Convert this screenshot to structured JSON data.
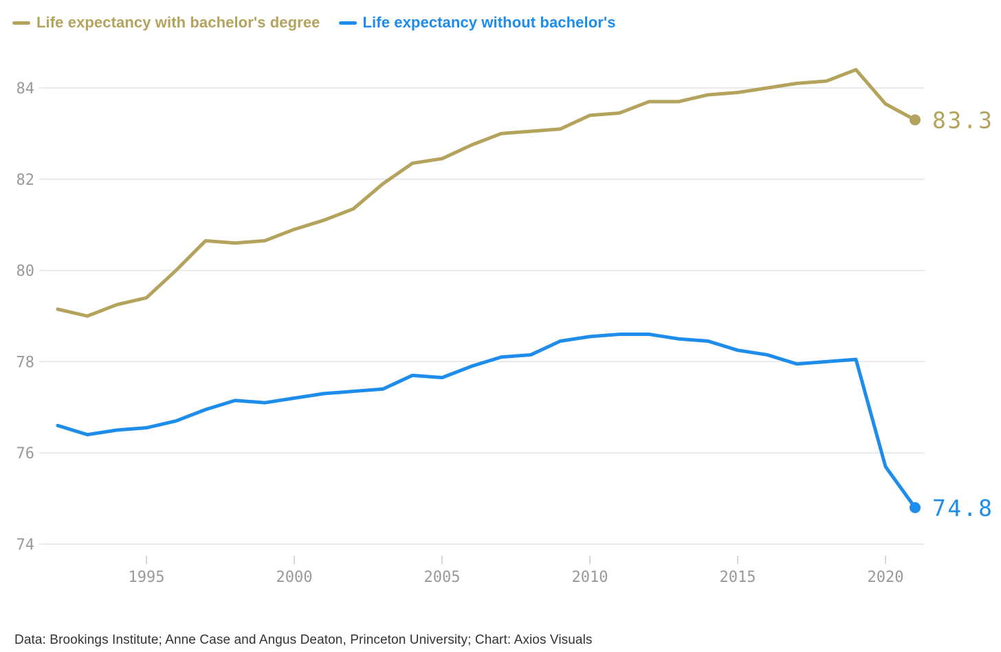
{
  "legend": {
    "items": [
      {
        "label": "Life expectancy with bachelor's degree",
        "color": "#b4a35c"
      },
      {
        "label": "Life expectancy without bachelor's",
        "color": "#1d8ceb"
      }
    ]
  },
  "chart_data": {
    "type": "line",
    "x": [
      1992,
      1993,
      1994,
      1995,
      1996,
      1997,
      1998,
      1999,
      2000,
      2001,
      2002,
      2003,
      2004,
      2005,
      2006,
      2007,
      2008,
      2009,
      2010,
      2011,
      2012,
      2013,
      2014,
      2015,
      2016,
      2017,
      2018,
      2019,
      2020,
      2021
    ],
    "series": [
      {
        "name": "Life expectancy with bachelor's degree",
        "color": "#b4a35c",
        "values": [
          79.15,
          79.0,
          79.25,
          79.4,
          80.0,
          80.65,
          80.6,
          80.65,
          80.9,
          81.1,
          81.35,
          81.9,
          82.35,
          82.45,
          82.75,
          83.0,
          83.05,
          83.1,
          83.4,
          83.45,
          83.7,
          83.7,
          83.85,
          83.9,
          84.0,
          84.1,
          84.15,
          84.4,
          83.65,
          83.3
        ],
        "end_label": "83.3"
      },
      {
        "name": "Life expectancy without bachelor's",
        "color": "#1d8ceb",
        "values": [
          76.6,
          76.4,
          76.5,
          76.55,
          76.7,
          76.95,
          77.15,
          77.1,
          77.2,
          77.3,
          77.35,
          77.4,
          77.7,
          77.65,
          77.9,
          78.1,
          78.15,
          78.45,
          78.55,
          78.6,
          78.6,
          78.5,
          78.45,
          78.25,
          78.15,
          77.95,
          78.0,
          78.05,
          75.7,
          74.8
        ],
        "end_label": "74.8"
      }
    ],
    "title": "",
    "xlabel": "",
    "ylabel": "",
    "y_ticks": [
      74,
      76,
      78,
      80,
      82,
      84
    ],
    "x_ticks": [
      1995,
      2000,
      2005,
      2010,
      2015,
      2020
    ],
    "ylim": [
      73.6,
      84.8
    ],
    "xlim": [
      1992,
      2021
    ],
    "grid": "horizontal",
    "legend_position": "top-left",
    "colors": {
      "gridline": "#e2e3e5",
      "tick": "#c9cacc",
      "axis_text": "#97999c"
    }
  },
  "caption": "Data: Brookings Institute; Anne Case and Angus Deaton, Princeton University; Chart: Axios Visuals"
}
